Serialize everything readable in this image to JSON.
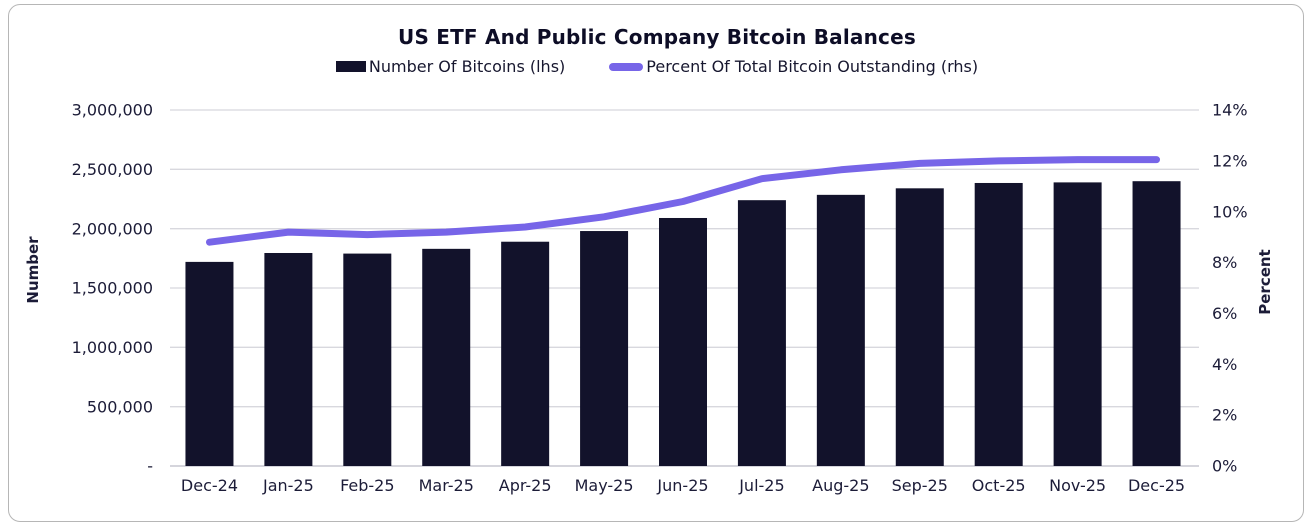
{
  "chart_data": {
    "type": "combo",
    "title": "US ETF And Public Company Bitcoin Balances",
    "categories": [
      "Dec-24",
      "Jan-25",
      "Feb-25",
      "Mar-25",
      "Apr-25",
      "May-25",
      "Jun-25",
      "Jul-25",
      "Aug-25",
      "Sep-25",
      "Oct-25",
      "Nov-25",
      "Dec-25"
    ],
    "series": [
      {
        "name": "Number Of Bitcoins (lhs)",
        "type": "bar",
        "axis": "left",
        "color": "#12122b",
        "values": [
          1720000,
          1795000,
          1790000,
          1830000,
          1890000,
          1980000,
          2090000,
          2240000,
          2285000,
          2340000,
          2385000,
          2390000,
          2400000
        ]
      },
      {
        "name": "Percent Of Total Bitcoin Outstanding (rhs)",
        "type": "line",
        "axis": "right",
        "color": "#7765e8",
        "values": [
          8.8,
          9.2,
          9.1,
          9.2,
          9.4,
          9.8,
          10.4,
          11.3,
          11.65,
          11.9,
          12.0,
          12.05,
          12.05
        ]
      }
    ],
    "left_axis": {
      "label": "Number",
      "min": 0,
      "max": 3000000,
      "tick_step": 500000,
      "tick_labels": [
        "-",
        "500,000",
        "1,000,000",
        "1,500,000",
        "2,000,000",
        "2,500,000",
        "3,000,000"
      ]
    },
    "right_axis": {
      "label": "Percent",
      "min": 0,
      "max": 14,
      "tick_step": 2,
      "tick_labels": [
        "0%",
        "2%",
        "4%",
        "6%",
        "8%",
        "10%",
        "12%",
        "14%"
      ]
    },
    "grid": true,
    "legend_position": "top",
    "colors": {
      "grid_line": "#d8d8de",
      "baseline": "#bcbcc6",
      "tick_text": "#1c1c38",
      "title_text": "#0d0d26",
      "card_border": "#b6b6b6"
    }
  }
}
